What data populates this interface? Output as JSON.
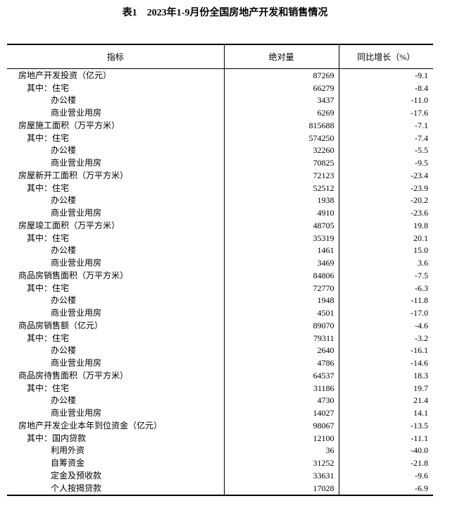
{
  "colors": {
    "background": "#ffffff",
    "text": "#000000",
    "table_border": "#000000"
  },
  "title": "表1　2023年1-9月份全国房地产开发和销售情况",
  "table": {
    "headers": [
      "指标",
      "绝对量",
      "同比增长（%）"
    ],
    "rows": [
      {
        "label": "房地产开发投资（亿元）",
        "indent": 0,
        "abs": "87269",
        "yoy": "-9.1"
      },
      {
        "label": "其中：住宅",
        "indent": 1,
        "abs": "66279",
        "yoy": "-8.4"
      },
      {
        "label": "办公楼",
        "indent": 2,
        "abs": "3437",
        "yoy": "-11.0"
      },
      {
        "label": "商业营业用房",
        "indent": 2,
        "abs": "6269",
        "yoy": "-17.6"
      },
      {
        "label": "房屋施工面积（万平方米）",
        "indent": 0,
        "abs": "815688",
        "yoy": "-7.1"
      },
      {
        "label": "其中：住宅",
        "indent": 1,
        "abs": "574250",
        "yoy": "-7.4"
      },
      {
        "label": "办公楼",
        "indent": 2,
        "abs": "32260",
        "yoy": "-5.5"
      },
      {
        "label": "商业营业用房",
        "indent": 2,
        "abs": "70825",
        "yoy": "-9.5"
      },
      {
        "label": "房屋新开工面积（万平方米）",
        "indent": 0,
        "abs": "72123",
        "yoy": "-23.4"
      },
      {
        "label": "其中：住宅",
        "indent": 1,
        "abs": "52512",
        "yoy": "-23.9"
      },
      {
        "label": "办公楼",
        "indent": 2,
        "abs": "1938",
        "yoy": "-20.2"
      },
      {
        "label": "商业营业用房",
        "indent": 2,
        "abs": "4910",
        "yoy": "-23.6"
      },
      {
        "label": "房屋竣工面积（万平方米）",
        "indent": 0,
        "abs": "48705",
        "yoy": "19.8"
      },
      {
        "label": "其中：住宅",
        "indent": 1,
        "abs": "35319",
        "yoy": "20.1"
      },
      {
        "label": "办公楼",
        "indent": 2,
        "abs": "1461",
        "yoy": "15.0"
      },
      {
        "label": "商业营业用房",
        "indent": 2,
        "abs": "3469",
        "yoy": "3.6"
      },
      {
        "label": "商品房销售面积（万平方米）",
        "indent": 0,
        "abs": "84806",
        "yoy": "-7.5"
      },
      {
        "label": "其中：住宅",
        "indent": 1,
        "abs": "72770",
        "yoy": "-6.3"
      },
      {
        "label": "办公楼",
        "indent": 2,
        "abs": "1948",
        "yoy": "-11.8"
      },
      {
        "label": "商业营业用房",
        "indent": 2,
        "abs": "4501",
        "yoy": "-17.0"
      },
      {
        "label": "商品房销售额（亿元）",
        "indent": 0,
        "abs": "89070",
        "yoy": "-4.6"
      },
      {
        "label": "其中：住宅",
        "indent": 1,
        "abs": "79311",
        "yoy": "-3.2"
      },
      {
        "label": "办公楼",
        "indent": 2,
        "abs": "2640",
        "yoy": "-16.1"
      },
      {
        "label": "商业营业用房",
        "indent": 2,
        "abs": "4786",
        "yoy": "-14.6"
      },
      {
        "label": "商品房待售面积（万平方米）",
        "indent": 0,
        "abs": "64537",
        "yoy": "18.3"
      },
      {
        "label": "其中：住宅",
        "indent": 1,
        "abs": "31186",
        "yoy": "19.7"
      },
      {
        "label": "办公楼",
        "indent": 2,
        "abs": "4730",
        "yoy": "21.4"
      },
      {
        "label": "商业营业用房",
        "indent": 2,
        "abs": "14027",
        "yoy": "14.1"
      },
      {
        "label": "房地产开发企业本年到位资金（亿元）",
        "indent": 0,
        "abs": "98067",
        "yoy": "-13.5"
      },
      {
        "label": "其中：国内贷款",
        "indent": 1,
        "abs": "12100",
        "yoy": "-11.1"
      },
      {
        "label": "利用外资",
        "indent": 2,
        "abs": "36",
        "yoy": "-40.0"
      },
      {
        "label": "自筹资金",
        "indent": 2,
        "abs": "31252",
        "yoy": "-21.8"
      },
      {
        "label": "定金及预收款",
        "indent": 2,
        "abs": "33631",
        "yoy": "-9.6"
      },
      {
        "label": "个人按揭贷款",
        "indent": 2,
        "abs": "17028",
        "yoy": "-6.9"
      }
    ]
  }
}
